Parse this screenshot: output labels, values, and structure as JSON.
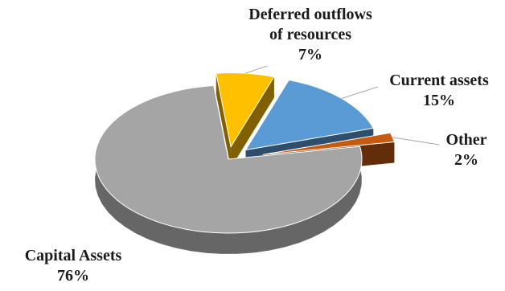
{
  "chart_data": {
    "type": "pie",
    "style": "3d-exploded",
    "slices": [
      {
        "name": "Deferred outflows of resources",
        "label_lines": [
          "Deferred outflows",
          "of resources"
        ],
        "value": 7,
        "value_label": "7%",
        "color": "#ffc000"
      },
      {
        "name": "Current assets",
        "label_lines": [
          "Current assets"
        ],
        "value": 15,
        "value_label": "15%",
        "color": "#5b9bd5"
      },
      {
        "name": "Other",
        "label_lines": [
          "Other"
        ],
        "value": 2,
        "value_label": "2%",
        "color": "#c55a11"
      },
      {
        "name": "Capital Assets",
        "label_lines": [
          "Capital Assets"
        ],
        "value": 76,
        "value_label": "76%",
        "color": "#a5a5a5"
      }
    ]
  }
}
